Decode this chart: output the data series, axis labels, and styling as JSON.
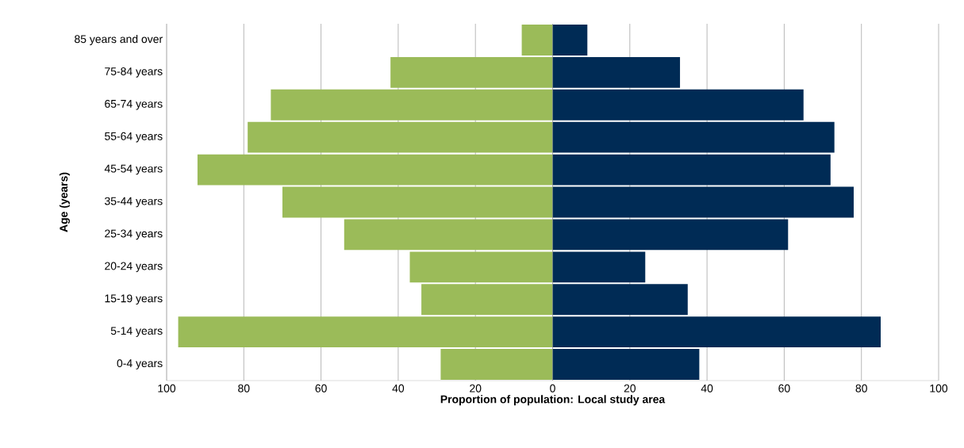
{
  "chart_data": {
    "type": "bar",
    "orientation": "horizontal",
    "stacked": true,
    "xlabel": "Proportion of population: Local study area",
    "ylabel": "Age (years)",
    "categories": [
      "85 years and over",
      "75-84 years",
      "65-74 years",
      "55-64 years",
      "45-54 years",
      "35-44 years",
      "25-34 years",
      "20-24 years",
      "15-19 years",
      "5-14 years",
      "0-4 years"
    ],
    "series": [
      {
        "color": "#9bbb59",
        "values": [
          -8,
          -42,
          -73,
          -79,
          -92,
          -70,
          -54,
          -37,
          -34,
          -97,
          -29
        ]
      },
      {
        "color": "#002b55",
        "values": [
          9,
          33,
          65,
          73,
          72,
          78,
          61,
          24,
          35,
          85,
          38
        ]
      }
    ],
    "xlim": [
      -100,
      100
    ],
    "xticks": [
      {
        "value": -100,
        "label": "100"
      },
      {
        "value": -80,
        "label": "80"
      },
      {
        "value": -60,
        "label": "60"
      },
      {
        "value": -40,
        "label": "40"
      },
      {
        "value": -20,
        "label": "20"
      },
      0,
      20,
      40,
      60,
      80,
      100
    ],
    "grid": "x"
  }
}
